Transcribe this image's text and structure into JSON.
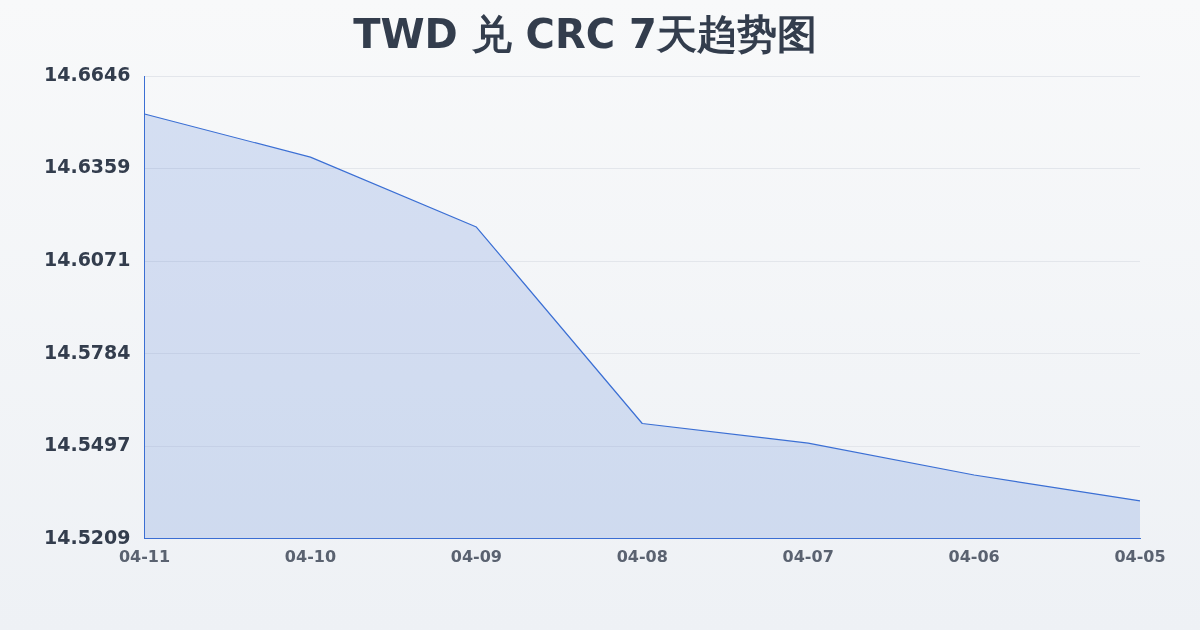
{
  "chart_data": {
    "type": "area",
    "title": "TWD 兑 CRC 7天趋势图",
    "categories": [
      "04-11",
      "04-10",
      "04-09",
      "04-08",
      "04-07",
      "04-06",
      "04-05"
    ],
    "series": [
      {
        "color": "#3b6fd4",
        "values": [
          14.6528,
          14.6394,
          14.6177,
          14.5567,
          14.5506,
          14.5407,
          14.5327
        ]
      }
    ],
    "ylim": [
      14.5209,
      14.6646
    ],
    "yticks": [
      14.5209,
      14.5497,
      14.5784,
      14.6071,
      14.6359,
      14.6646
    ],
    "grid": "y",
    "legend": false,
    "marker": "none",
    "line_style": "solid"
  }
}
